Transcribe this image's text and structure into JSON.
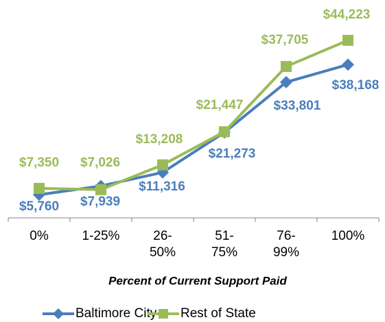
{
  "chart_data": {
    "type": "line",
    "x_label": "Percent of Current Support Paid",
    "categories": [
      "0%",
      "1-25%",
      "26-50%",
      "51-75%",
      "76-99%",
      "100%"
    ],
    "ylim": [
      0,
      50000
    ],
    "legend": "bottom",
    "series": [
      {
        "name": "Baltimore City",
        "color": "#4a7ebb",
        "marker": "diamond",
        "values": [
          5760,
          7939,
          11316,
          21273,
          33801,
          38168
        ],
        "value_labels": [
          "$5,760",
          "$7,939",
          "$11,316",
          "$21,273",
          "$33,801",
          "$38,168"
        ]
      },
      {
        "name": "Rest of State",
        "color": "#9bbb59",
        "marker": "square",
        "values": [
          7350,
          7026,
          13208,
          21447,
          37705,
          44223
        ],
        "value_labels": [
          "$7,350",
          "$7,026",
          "$13,208",
          "$21,447",
          "$37,705",
          "$44,223"
        ]
      }
    ]
  }
}
